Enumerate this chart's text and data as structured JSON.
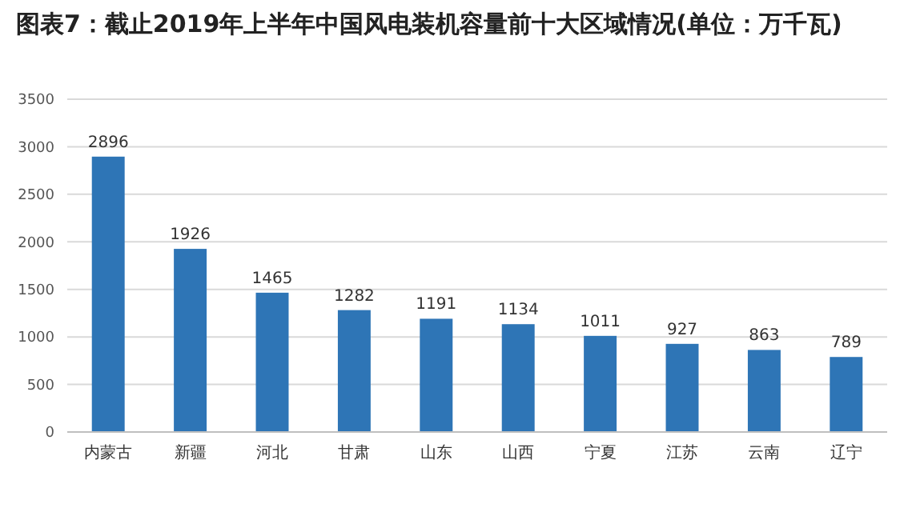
{
  "chart_data": {
    "type": "bar",
    "title": "图表7：截止2019年上半年中国风电装机容量前十大区域情况(单位：万千瓦)",
    "categories": [
      "内蒙古",
      "新疆",
      "河北",
      "甘肃",
      "山东",
      "山西",
      "宁夏",
      "江苏",
      "云南",
      "辽宁"
    ],
    "values": [
      2896,
      1926,
      1465,
      1282,
      1191,
      1134,
      1011,
      927,
      863,
      789
    ],
    "color": "#2e75b6",
    "ylim": [
      0,
      3500
    ],
    "yticks": [
      0,
      500,
      1000,
      1500,
      2000,
      2500,
      3000,
      3500
    ],
    "grid": "y",
    "data_labels": true
  }
}
